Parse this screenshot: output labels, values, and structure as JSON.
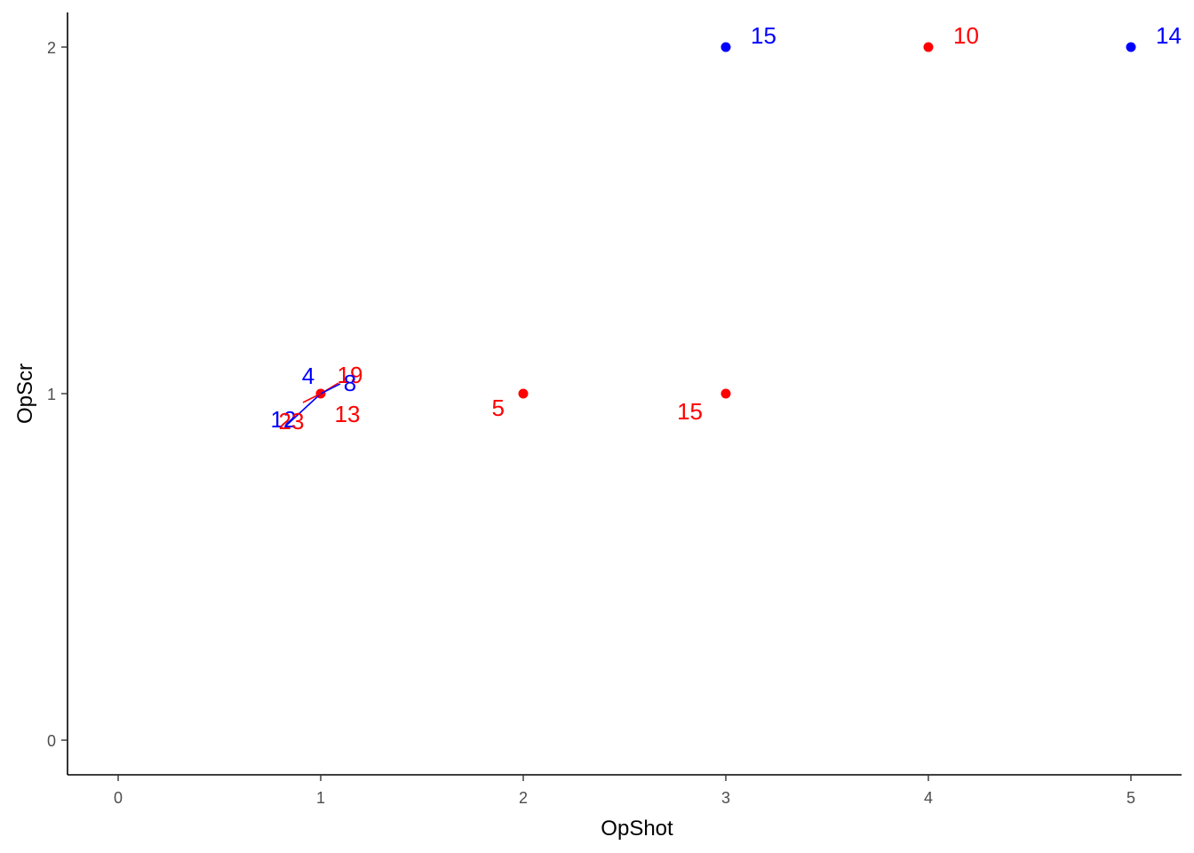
{
  "chart_data": {
    "type": "scatter",
    "xlabel": "OpShot",
    "ylabel": "OpScr",
    "xlim": [
      -0.25,
      5.25
    ],
    "ylim": [
      -0.1,
      2.1
    ],
    "x_ticks": [
      0,
      1,
      2,
      3,
      4,
      5
    ],
    "y_ticks": [
      0,
      1,
      2
    ],
    "x_tick_labels": [
      "0",
      "1",
      "2",
      "3",
      "4",
      "5"
    ],
    "y_tick_labels": [
      "0",
      "1",
      "2"
    ],
    "grid": false,
    "legend": "none",
    "colors": {
      "red": "#ff0000",
      "blue": "#0000ff",
      "axis": "#000000"
    },
    "points": [
      {
        "x": 1,
        "y": 1,
        "color": "red"
      },
      {
        "x": 2,
        "y": 1,
        "color": "red"
      },
      {
        "x": 3,
        "y": 1,
        "color": "red"
      },
      {
        "x": 3,
        "y": 2,
        "color": "blue"
      },
      {
        "x": 4,
        "y": 2,
        "color": "red"
      },
      {
        "x": 5,
        "y": 2,
        "color": "blue"
      }
    ],
    "labels": [
      {
        "text": "15",
        "x": 3,
        "y": 2,
        "color": "blue",
        "placement": "upper-right"
      },
      {
        "text": "10",
        "x": 4,
        "y": 2,
        "color": "red",
        "placement": "upper-right"
      },
      {
        "text": "14",
        "x": 5,
        "y": 2,
        "color": "blue",
        "placement": "upper-right"
      },
      {
        "text": "4",
        "x": 1,
        "y": 1,
        "color": "blue",
        "placement": "upper-left"
      },
      {
        "text": "19",
        "x": 1,
        "y": 1,
        "color": "red",
        "placement": "upper-right",
        "leader": true
      },
      {
        "text": "8",
        "x": 1,
        "y": 1,
        "color": "blue",
        "placement": "right",
        "leader": true
      },
      {
        "text": "12",
        "x": 1,
        "y": 1,
        "color": "blue",
        "placement": "lower-left",
        "leader": true
      },
      {
        "text": "23",
        "x": 1,
        "y": 1,
        "color": "red",
        "placement": "lower-left",
        "leader": true
      },
      {
        "text": "13",
        "x": 1,
        "y": 1,
        "color": "red",
        "placement": "lower-right"
      },
      {
        "text": "5",
        "x": 2,
        "y": 1,
        "color": "red",
        "placement": "lower-left"
      },
      {
        "text": "15",
        "x": 3,
        "y": 1,
        "color": "red",
        "placement": "lower-left"
      }
    ]
  }
}
